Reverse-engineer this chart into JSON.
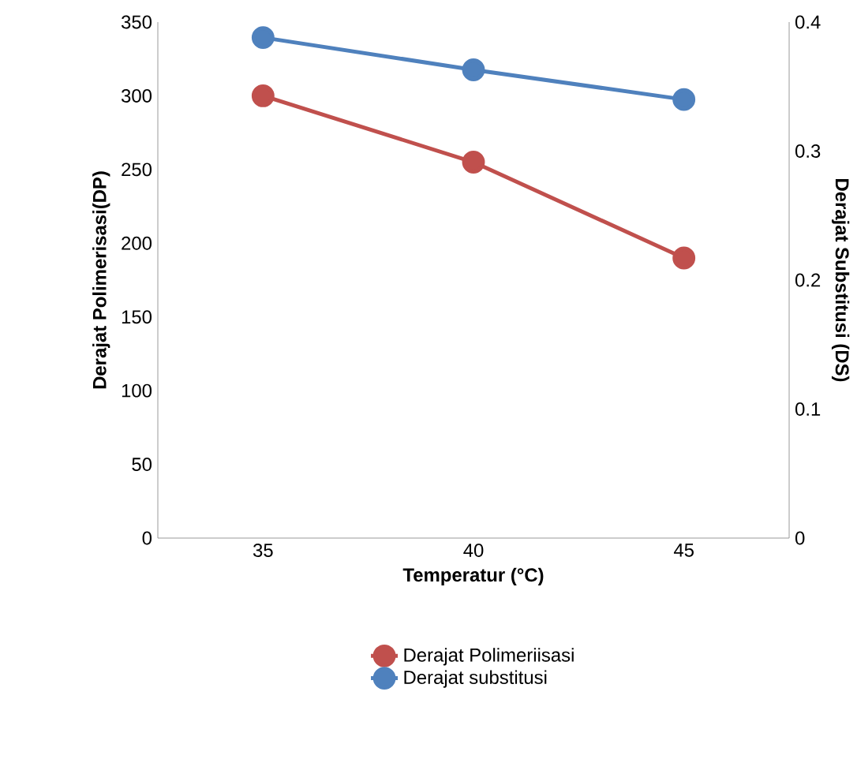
{
  "chart_data": {
    "type": "line",
    "categories": [
      "35",
      "40",
      "45"
    ],
    "xlabel": "Temperatur (°C)",
    "ylabel": "Derajat Polimerisasi(DP)",
    "y2label": "Derajat Substitusi (DS)",
    "ylim": [
      0,
      350
    ],
    "yticks": [
      0,
      50,
      100,
      150,
      200,
      250,
      300,
      350
    ],
    "y2lim": [
      0,
      0.4
    ],
    "y2ticks": [
      0,
      0.1,
      0.2,
      0.3,
      0.4
    ],
    "series": [
      {
        "name": "Derajat Polimeriisasi",
        "color": "#c0504d",
        "values": [
          300,
          255,
          190
        ]
      },
      {
        "name": "Derajat substitusi",
        "color": "#4f81bd",
        "axis": "y2",
        "values": [
          0.388,
          0.363,
          0.34
        ]
      }
    ],
    "marker": "circle",
    "line_style": "solid",
    "legend": "bottom",
    "grid": false
  }
}
